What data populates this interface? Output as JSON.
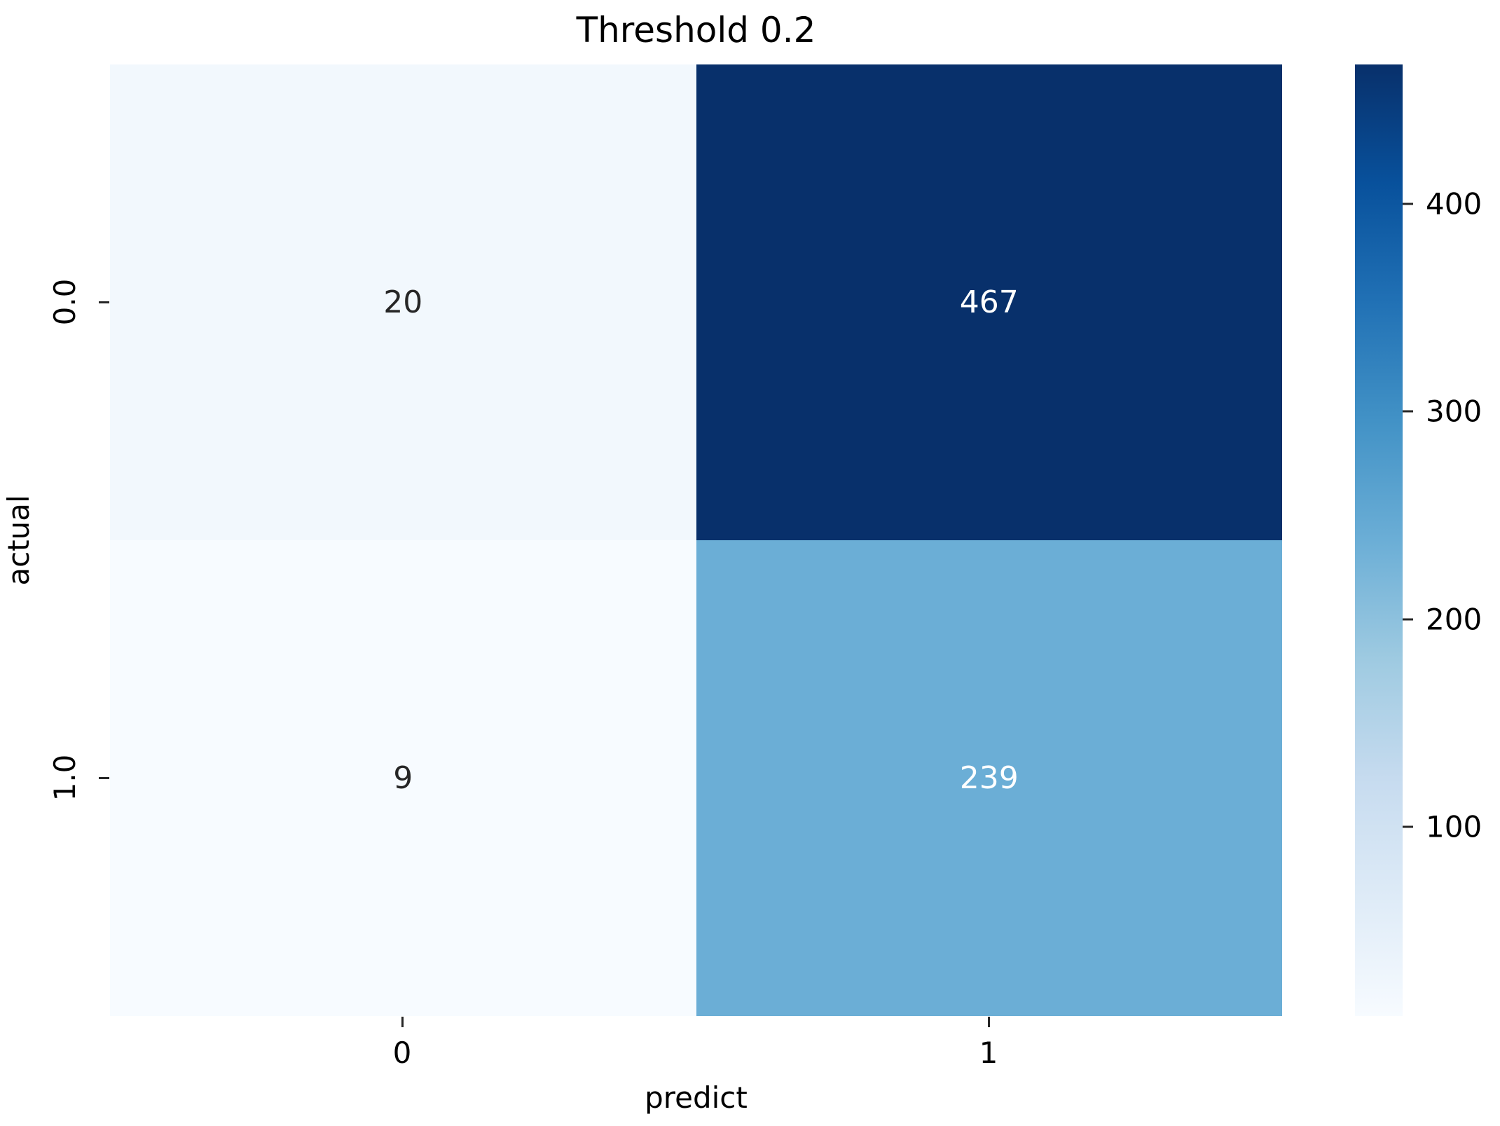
{
  "figure": {
    "title": "Threshold 0.2"
  },
  "chart_data": {
    "type": "heatmap",
    "title": "Threshold 0.2",
    "xlabel": "predict",
    "ylabel": "actual",
    "x_ticklabels": [
      "0",
      "1"
    ],
    "y_ticklabels": [
      "0.0",
      "1.0"
    ],
    "matrix": [
      [
        20,
        467
      ],
      [
        9,
        239
      ]
    ],
    "colormap": "Blues",
    "vmin": 9,
    "vmax": 467,
    "legend_position": "right-colorbar",
    "grid": false,
    "cells": [
      {
        "actual": "0.0",
        "predict": "0",
        "value": "20",
        "bg": "#f2f8fd",
        "fg": "#262626"
      },
      {
        "actual": "0.0",
        "predict": "1",
        "value": "467",
        "bg": "#08306b",
        "fg": "#ffffff"
      },
      {
        "actual": "1.0",
        "predict": "0",
        "value": "9",
        "bg": "#f7fbff",
        "fg": "#262626"
      },
      {
        "actual": "1.0",
        "predict": "1",
        "value": "239",
        "bg": "#6baed6",
        "fg": "#ffffff"
      }
    ],
    "colorbar": {
      "ticks": [
        {
          "value": 100,
          "label": "100"
        },
        {
          "value": 200,
          "label": "200"
        },
        {
          "value": 300,
          "label": "300"
        },
        {
          "value": 400,
          "label": "400"
        }
      ],
      "gradient_stops": [
        {
          "pos": 0,
          "color": "#f7fbff"
        },
        {
          "pos": 12.5,
          "color": "#deebf7"
        },
        {
          "pos": 25,
          "color": "#c6dbef"
        },
        {
          "pos": 37.5,
          "color": "#9ecae1"
        },
        {
          "pos": 50,
          "color": "#6baed6"
        },
        {
          "pos": 62.5,
          "color": "#4292c6"
        },
        {
          "pos": 75,
          "color": "#2171b5"
        },
        {
          "pos": 87.5,
          "color": "#08519c"
        },
        {
          "pos": 100,
          "color": "#08306b"
        }
      ]
    },
    "annotation_text_colors": {
      "dark": "#262626",
      "light": "#ffffff"
    },
    "axis_text_color": "#000000"
  }
}
